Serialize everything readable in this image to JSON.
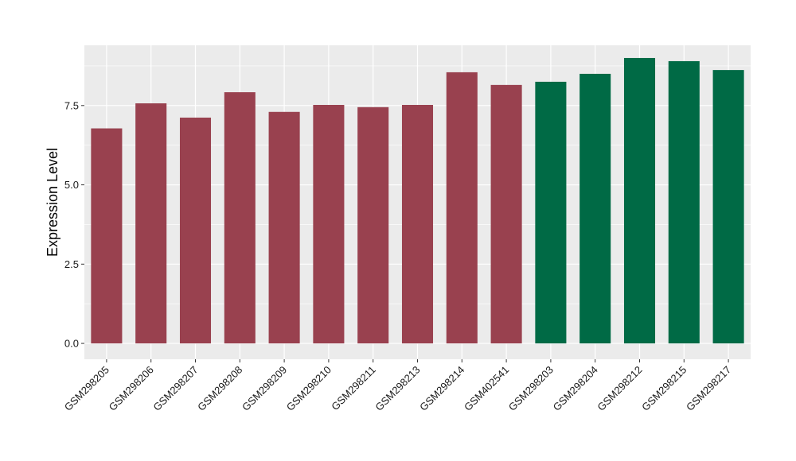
{
  "chart_data": {
    "type": "bar",
    "ylabel": "Expression Level",
    "xlabel": "",
    "title": "",
    "ylim": [
      -0.5,
      9.4
    ],
    "y_ticks": [
      0.0,
      2.5,
      5.0,
      7.5
    ],
    "y_tick_labels": [
      "0.0",
      "2.5",
      "5.0",
      "7.5"
    ],
    "grid": true,
    "panel_background": "#ebebeb",
    "categories": [
      "GSM298205",
      "GSM298206",
      "GSM298207",
      "GSM298208",
      "GSM298209",
      "GSM298210",
      "GSM298211",
      "GSM298213",
      "GSM298214",
      "GSM402541",
      "GSM298203",
      "GSM298204",
      "GSM298212",
      "GSM298215",
      "GSM298217"
    ],
    "values": [
      6.78,
      7.57,
      7.12,
      7.92,
      7.3,
      7.52,
      7.45,
      7.52,
      8.55,
      8.15,
      8.25,
      8.5,
      9.0,
      8.9,
      8.62
    ],
    "colors": [
      "#99414f",
      "#99414f",
      "#99414f",
      "#99414f",
      "#99414f",
      "#99414f",
      "#99414f",
      "#99414f",
      "#99414f",
      "#99414f",
      "#006a45",
      "#006a45",
      "#006a45",
      "#006a45",
      "#006a45"
    ]
  }
}
